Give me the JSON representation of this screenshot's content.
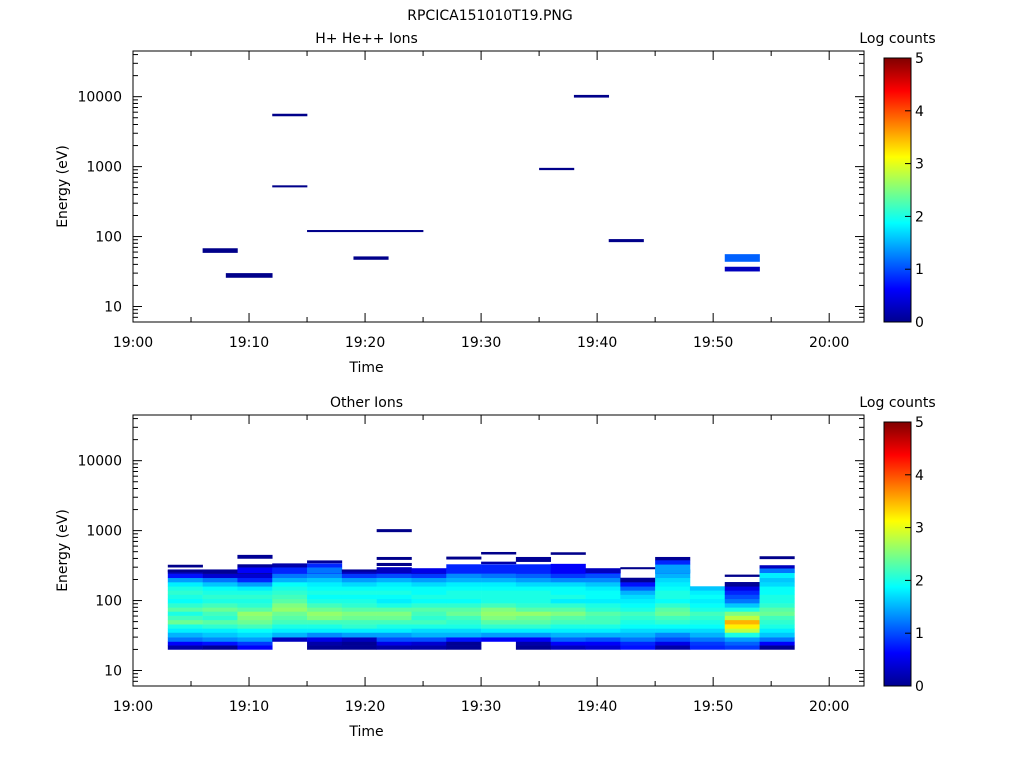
{
  "figure_title": "RPCICA151010T19.PNG",
  "chart_data": [
    {
      "type": "heatmap",
      "title": "H+ He++ Ions",
      "xlabel": "Time",
      "ylabel": "Energy (eV)",
      "y_scale": "log",
      "xlim": [
        "19:00",
        "20:03"
      ],
      "ylim": [
        6,
        45000
      ],
      "x_ticks": [
        "19:00",
        "19:10",
        "19:20",
        "19:30",
        "19:40",
        "19:50",
        "20:00"
      ],
      "y_ticks": [
        "10",
        "100",
        "1000",
        "10000"
      ],
      "colorbar": {
        "label": "Log counts",
        "min": 0,
        "max": 5,
        "ticks": [
          "0",
          "1",
          "2",
          "3",
          "4",
          "5"
        ]
      },
      "cells": [
        {
          "t0": "19:06",
          "t1": "19:09",
          "e_low": 59,
          "e_high": 68,
          "log_counts": 0.05
        },
        {
          "t0": "19:08",
          "t1": "19:12",
          "e_low": 26,
          "e_high": 30,
          "log_counts": 0.05
        },
        {
          "t0": "19:12",
          "t1": "19:15",
          "e_low": 5300,
          "e_high": 5700,
          "log_counts": 0.05
        },
        {
          "t0": "19:12",
          "t1": "19:15",
          "e_low": 510,
          "e_high": 540,
          "log_counts": 0.05
        },
        {
          "t0": "19:15",
          "t1": "19:25",
          "e_low": 117,
          "e_high": 124,
          "log_counts": 0.05
        },
        {
          "t0": "19:19",
          "t1": "19:22",
          "e_low": 47,
          "e_high": 52,
          "log_counts": 0.05
        },
        {
          "t0": "19:35",
          "t1": "19:38",
          "e_low": 900,
          "e_high": 960,
          "log_counts": 0.05
        },
        {
          "t0": "19:38",
          "t1": "19:41",
          "e_low": 9800,
          "e_high": 10600,
          "log_counts": 0.05
        },
        {
          "t0": "19:41",
          "t1": "19:44",
          "e_low": 84,
          "e_high": 92,
          "log_counts": 0.05
        },
        {
          "t0": "19:51",
          "t1": "19:54",
          "e_low": 44,
          "e_high": 56,
          "log_counts": 1.1
        },
        {
          "t0": "19:51",
          "t1": "19:54",
          "e_low": 32,
          "e_high": 37,
          "log_counts": 0.3
        }
      ]
    },
    {
      "type": "heatmap",
      "title": "Other Ions",
      "xlabel": "Time",
      "ylabel": "Energy (eV)",
      "y_scale": "log",
      "xlim": [
        "19:00",
        "20:03"
      ],
      "ylim": [
        6,
        45000
      ],
      "x_ticks": [
        "19:00",
        "19:10",
        "19:20",
        "19:30",
        "19:40",
        "19:50",
        "20:00"
      ],
      "y_ticks": [
        "10",
        "100",
        "1000",
        "10000"
      ],
      "colorbar": {
        "label": "Log counts",
        "min": 0,
        "max": 5,
        "ticks": [
          "0",
          "1",
          "2",
          "3",
          "4",
          "5"
        ]
      },
      "energy_levels": [
        20,
        23,
        26,
        30,
        35,
        40,
        46,
        53,
        61,
        70,
        80,
        92,
        106,
        122,
        140,
        160,
        184,
        212,
        243
      ],
      "columns": [
        {
          "t0": "19:03",
          "t1": "19:06",
          "log_counts": [
            0.2,
            0.6,
            1.2,
            1.5,
            1.8,
            2.0,
            2.4,
            2.2,
            2.0,
            2.3,
            2.1,
            1.9,
            2.0,
            2.1,
            2.0,
            1.8,
            1.4,
            0.7,
            0.3
          ],
          "extra": [
            {
              "e_low": 255,
              "e_high": 275,
              "log_counts": 0.05
            },
            {
              "e_low": 300,
              "e_high": 325,
              "log_counts": 0.05
            }
          ]
        },
        {
          "t0": "19:06",
          "t1": "19:09",
          "log_counts": [
            0.1,
            0.7,
            1.3,
            1.6,
            1.8,
            2.1,
            2.3,
            2.1,
            2.2,
            2.4,
            2.2,
            2.0,
            2.1,
            2.0,
            1.9,
            1.6,
            1.2,
            0.4,
            0.1
          ]
        },
        {
          "t0": "19:09",
          "t1": "19:12",
          "log_counts": [
            0.6,
            0.9,
            1.4,
            1.7,
            1.9,
            2.2,
            2.4,
            2.5,
            2.6,
            2.3,
            2.1,
            2.0,
            2.1,
            2.0,
            1.8,
            1.4,
            0.8,
            0.4,
            0.2
          ],
          "extra": [
            {
              "e_low": 250,
              "e_high": 300,
              "log_counts": 0.6
            },
            {
              "e_low": 300,
              "e_high": 330,
              "log_counts": 0.1
            },
            {
              "e_low": 400,
              "e_high": 450,
              "log_counts": 0.1
            }
          ]
        },
        {
          "t0": "19:12",
          "t1": "19:15",
          "log_counts": [
            null,
            null,
            0.3,
            1.5,
            1.8,
            2.0,
            2.2,
            2.3,
            2.4,
            2.6,
            2.5,
            2.3,
            2.2,
            2.1,
            2.0,
            1.9,
            1.5,
            1.2,
            0.8
          ],
          "extra": [
            {
              "e_low": 250,
              "e_high": 300,
              "log_counts": 0.8
            },
            {
              "e_low": 300,
              "e_high": 340,
              "log_counts": 0.2
            }
          ]
        },
        {
          "t0": "19:15",
          "t1": "19:18",
          "log_counts": [
            0.1,
            0.2,
            0.5,
            1.3,
            1.8,
            2.0,
            2.2,
            2.5,
            2.6,
            2.4,
            2.2,
            2.0,
            1.9,
            2.0,
            1.9,
            1.8,
            1.6,
            1.3,
            1.0
          ],
          "extra": [
            {
              "e_low": 250,
              "e_high": 300,
              "log_counts": 1.2
            },
            {
              "e_low": 300,
              "e_high": 340,
              "log_counts": 0.8
            },
            {
              "e_low": 345,
              "e_high": 375,
              "log_counts": 0.1
            }
          ]
        },
        {
          "t0": "19:18",
          "t1": "19:21",
          "log_counts": [
            0.1,
            0.1,
            0.3,
            1.4,
            1.8,
            2.1,
            2.2,
            2.4,
            2.5,
            2.3,
            2.1,
            2.0,
            1.9,
            2.0,
            1.9,
            1.7,
            1.4,
            0.9,
            0.3
          ],
          "extra": [
            {
              "e_low": 262,
              "e_high": 278,
              "log_counts": 0.1
            }
          ]
        },
        {
          "t0": "19:21",
          "t1": "19:24",
          "log_counts": [
            0.2,
            0.5,
            1.0,
            1.4,
            1.8,
            2.0,
            2.2,
            2.4,
            2.5,
            2.3,
            2.0,
            1.8,
            1.9,
            2.0,
            1.9,
            1.8,
            1.5,
            1.0,
            0.5
          ],
          "extra": [
            {
              "e_low": 250,
              "e_high": 300,
              "log_counts": 0.3
            },
            {
              "e_low": 315,
              "e_high": 345,
              "log_counts": 0.05
            },
            {
              "e_low": 385,
              "e_high": 420,
              "log_counts": 0.05
            },
            {
              "e_low": 960,
              "e_high": 1050,
              "log_counts": 0.05
            }
          ]
        },
        {
          "t0": "19:24",
          "t1": "19:27",
          "log_counts": [
            0.2,
            0.4,
            1.0,
            1.5,
            1.7,
            2.0,
            2.2,
            2.1,
            2.2,
            2.3,
            2.1,
            1.9,
            2.0,
            1.9,
            1.9,
            1.7,
            1.4,
            0.9,
            0.4
          ],
          "extra": [
            {
              "e_low": 250,
              "e_high": 290,
              "log_counts": 0.5
            }
          ]
        },
        {
          "t0": "19:27",
          "t1": "19:30",
          "log_counts": [
            0.1,
            0.1,
            0.7,
            1.5,
            1.7,
            2.0,
            2.1,
            2.2,
            2.4,
            2.3,
            2.1,
            1.9,
            2.0,
            2.0,
            1.9,
            1.8,
            1.5,
            1.3,
            0.9
          ],
          "extra": [
            {
              "e_low": 250,
              "e_high": 330,
              "log_counts": 0.8
            },
            {
              "e_low": 390,
              "e_high": 425,
              "log_counts": 0.05
            }
          ]
        },
        {
          "t0": "19:30",
          "t1": "19:33",
          "log_counts": [
            null,
            null,
            0.6,
            1.4,
            1.8,
            2.1,
            2.3,
            2.5,
            2.6,
            2.5,
            2.2,
            2.0,
            2.0,
            2.0,
            1.9,
            1.8,
            1.5,
            1.2,
            0.9
          ],
          "extra": [
            {
              "e_low": 250,
              "e_high": 330,
              "log_counts": 0.8
            },
            {
              "e_low": 335,
              "e_high": 360,
              "log_counts": 0.2
            },
            {
              "e_low": 460,
              "e_high": 495,
              "log_counts": 0.05
            }
          ]
        },
        {
          "t0": "19:33",
          "t1": "19:36",
          "log_counts": [
            0.1,
            0.2,
            0.6,
            1.4,
            1.8,
            2.1,
            2.3,
            2.4,
            2.6,
            2.3,
            2.1,
            2.0,
            2.0,
            2.0,
            1.9,
            1.7,
            1.4,
            1.1,
            0.8
          ],
          "extra": [
            {
              "e_low": 250,
              "e_high": 330,
              "log_counts": 0.8
            },
            {
              "e_low": 360,
              "e_high": 420,
              "log_counts": 0.1
            }
          ]
        },
        {
          "t0": "19:36",
          "t1": "19:39",
          "log_counts": [
            0.3,
            0.6,
            1.1,
            1.5,
            1.8,
            2.0,
            2.2,
            2.3,
            2.5,
            2.3,
            2.1,
            1.8,
            2.0,
            1.9,
            1.9,
            1.7,
            1.3,
            0.9,
            0.6
          ],
          "extra": [
            {
              "e_low": 250,
              "e_high": 335,
              "log_counts": 0.6
            },
            {
              "e_low": 455,
              "e_high": 490,
              "log_counts": 0.05
            }
          ]
        },
        {
          "t0": "19:39",
          "t1": "19:42",
          "log_counts": [
            0.4,
            0.6,
            1.0,
            1.5,
            1.8,
            2.0,
            2.2,
            2.2,
            2.3,
            2.1,
            2.0,
            1.8,
            1.9,
            1.9,
            1.8,
            1.6,
            1.3,
            1.0,
            0.7
          ],
          "extra": [
            {
              "e_low": 250,
              "e_high": 290,
              "log_counts": 0.3
            }
          ]
        },
        {
          "t0": "19:42",
          "t1": "19:45",
          "log_counts": [
            0.7,
            0.8,
            1.2,
            1.5,
            1.7,
            1.9,
            2.0,
            2.1,
            2.2,
            2.0,
            1.9,
            1.8,
            1.7,
            1.5,
            1.1,
            0.7,
            0.1,
            null,
            null
          ],
          "extra": [
            {
              "e_low": 283,
              "e_high": 300,
              "log_counts": 0.05
            }
          ]
        },
        {
          "t0": "19:45",
          "t1": "19:48",
          "log_counts": [
            0.2,
            0.5,
            1.0,
            1.3,
            1.7,
            1.9,
            2.1,
            2.2,
            2.4,
            2.3,
            2.1,
            1.9,
            2.0,
            2.0,
            1.9,
            1.8,
            1.7,
            1.5,
            1.3
          ],
          "extra": [
            {
              "e_low": 250,
              "e_high": 330,
              "log_counts": 1.4
            },
            {
              "e_low": 330,
              "e_high": 380,
              "log_counts": 0.8
            },
            {
              "e_low": 380,
              "e_high": 420,
              "log_counts": 0.1
            }
          ]
        },
        {
          "t0": "19:48",
          "t1": "19:51",
          "log_counts": [
            0.8,
            0.9,
            1.2,
            1.5,
            1.7,
            1.9,
            2.0,
            2.1,
            2.2,
            2.0,
            1.9,
            1.8,
            1.9,
            1.8,
            1.6,
            null,
            null,
            null,
            null
          ]
        },
        {
          "t0": "19:51",
          "t1": "19:54",
          "log_counts": [
            0.9,
            1.1,
            1.4,
            2.0,
            2.8,
            3.2,
            3.5,
            2.8,
            2.5,
            2.0,
            1.6,
            1.2,
            1.0,
            0.8,
            0.5,
            0.1,
            null,
            null,
            null
          ],
          "extra": [
            {
              "e_low": 220,
              "e_high": 235,
              "log_counts": 0.05
            }
          ]
        },
        {
          "t0": "19:54",
          "t1": "19:57",
          "log_counts": [
            0.1,
            0.6,
            1.2,
            1.6,
            1.8,
            2.0,
            2.1,
            2.2,
            2.4,
            2.3,
            2.1,
            2.0,
            2.0,
            1.9,
            1.9,
            1.7,
            1.6,
            1.8,
            1.8
          ],
          "extra": [
            {
              "e_low": 250,
              "e_high": 290,
              "log_counts": 1.2
            },
            {
              "e_low": 290,
              "e_high": 320,
              "log_counts": 0.3
            },
            {
              "e_low": 395,
              "e_high": 430,
              "log_counts": 0.05
            }
          ]
        }
      ]
    }
  ]
}
